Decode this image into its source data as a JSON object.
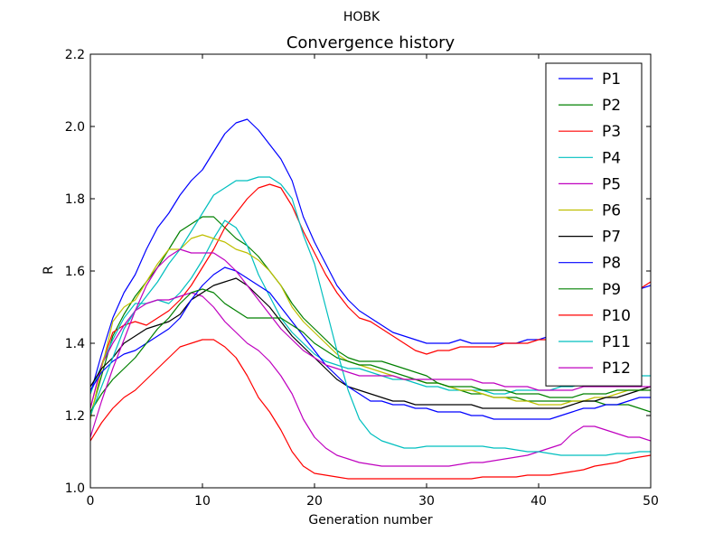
{
  "chart_data": {
    "type": "line",
    "suptitle": "HOBK",
    "title": "Convergence history",
    "xlabel": "Generation number",
    "ylabel": "R",
    "xlim": [
      0,
      50
    ],
    "ylim": [
      1.0,
      2.2
    ],
    "xticks": [
      0,
      10,
      20,
      30,
      40,
      50
    ],
    "yticks": [
      1.0,
      1.2,
      1.4,
      1.6,
      1.8,
      2.0,
      2.2
    ],
    "grid": false,
    "legend_position": "top-right",
    "x": [
      0,
      1,
      2,
      3,
      4,
      5,
      6,
      7,
      8,
      9,
      10,
      11,
      12,
      13,
      14,
      15,
      16,
      17,
      18,
      19,
      20,
      21,
      22,
      23,
      24,
      25,
      26,
      27,
      28,
      29,
      30,
      31,
      32,
      33,
      34,
      35,
      36,
      37,
      38,
      39,
      40,
      41,
      42,
      43,
      44,
      45,
      46,
      47,
      48,
      49,
      50
    ],
    "series": [
      {
        "name": "P1",
        "color": "#0000ff",
        "values": [
          1.26,
          1.37,
          1.47,
          1.54,
          1.59,
          1.66,
          1.72,
          1.76,
          1.81,
          1.85,
          1.88,
          1.93,
          1.98,
          2.01,
          2.02,
          1.99,
          1.95,
          1.91,
          1.85,
          1.75,
          1.68,
          1.62,
          1.56,
          1.52,
          1.49,
          1.47,
          1.45,
          1.43,
          1.42,
          1.41,
          1.4,
          1.4,
          1.4,
          1.41,
          1.4,
          1.4,
          1.4,
          1.4,
          1.4,
          1.41,
          1.41,
          1.42,
          1.43,
          1.45,
          1.47,
          1.49,
          1.51,
          1.52,
          1.54,
          1.55,
          1.56
        ]
      },
      {
        "name": "P2",
        "color": "#008000",
        "values": [
          1.2,
          1.31,
          1.42,
          1.48,
          1.53,
          1.57,
          1.61,
          1.66,
          1.71,
          1.73,
          1.75,
          1.75,
          1.72,
          1.69,
          1.67,
          1.64,
          1.6,
          1.56,
          1.51,
          1.47,
          1.44,
          1.41,
          1.38,
          1.36,
          1.35,
          1.35,
          1.35,
          1.34,
          1.33,
          1.32,
          1.31,
          1.29,
          1.28,
          1.27,
          1.26,
          1.26,
          1.25,
          1.25,
          1.25,
          1.24,
          1.24,
          1.24,
          1.24,
          1.24,
          1.24,
          1.24,
          1.23,
          1.23,
          1.23,
          1.22,
          1.21
        ]
      },
      {
        "name": "P3",
        "color": "#ff0000",
        "values": [
          1.22,
          1.34,
          1.43,
          1.45,
          1.46,
          1.45,
          1.47,
          1.49,
          1.52,
          1.56,
          1.61,
          1.66,
          1.72,
          1.76,
          1.8,
          1.83,
          1.84,
          1.83,
          1.78,
          1.71,
          1.65,
          1.59,
          1.54,
          1.5,
          1.47,
          1.46,
          1.44,
          1.42,
          1.4,
          1.38,
          1.37,
          1.38,
          1.38,
          1.39,
          1.39,
          1.39,
          1.39,
          1.4,
          1.4,
          1.4,
          1.41,
          1.41,
          1.42,
          1.43,
          1.45,
          1.47,
          1.49,
          1.51,
          1.53,
          1.55,
          1.57
        ]
      },
      {
        "name": "P4",
        "color": "#00bfbf",
        "values": [
          1.26,
          1.34,
          1.41,
          1.47,
          1.51,
          1.51,
          1.52,
          1.51,
          1.54,
          1.58,
          1.63,
          1.69,
          1.74,
          1.72,
          1.67,
          1.59,
          1.53,
          1.47,
          1.43,
          1.4,
          1.37,
          1.35,
          1.34,
          1.33,
          1.33,
          1.32,
          1.31,
          1.3,
          1.3,
          1.29,
          1.28,
          1.28,
          1.27,
          1.27,
          1.27,
          1.27,
          1.26,
          1.26,
          1.27,
          1.27,
          1.27,
          1.27,
          1.28,
          1.28,
          1.29,
          1.29,
          1.3,
          1.3,
          1.3,
          1.31,
          1.31
        ]
      },
      {
        "name": "P5",
        "color": "#bf00bf",
        "values": [
          1.22,
          1.34,
          1.4,
          1.45,
          1.49,
          1.51,
          1.52,
          1.52,
          1.53,
          1.54,
          1.53,
          1.5,
          1.46,
          1.43,
          1.4,
          1.38,
          1.35,
          1.31,
          1.26,
          1.19,
          1.14,
          1.11,
          1.09,
          1.08,
          1.07,
          1.065,
          1.06,
          1.06,
          1.06,
          1.06,
          1.06,
          1.06,
          1.06,
          1.065,
          1.07,
          1.07,
          1.075,
          1.08,
          1.085,
          1.09,
          1.1,
          1.11,
          1.12,
          1.15,
          1.17,
          1.17,
          1.16,
          1.15,
          1.14,
          1.14,
          1.13
        ]
      },
      {
        "name": "P6",
        "color": "#bfbf00",
        "values": [
          1.19,
          1.33,
          1.46,
          1.5,
          1.52,
          1.57,
          1.62,
          1.66,
          1.66,
          1.69,
          1.7,
          1.69,
          1.68,
          1.66,
          1.65,
          1.63,
          1.6,
          1.56,
          1.5,
          1.46,
          1.43,
          1.4,
          1.37,
          1.35,
          1.34,
          1.33,
          1.32,
          1.31,
          1.3,
          1.3,
          1.29,
          1.29,
          1.28,
          1.27,
          1.27,
          1.26,
          1.25,
          1.25,
          1.24,
          1.24,
          1.23,
          1.23,
          1.23,
          1.24,
          1.24,
          1.25,
          1.25,
          1.26,
          1.27,
          1.27,
          1.28
        ]
      },
      {
        "name": "P7",
        "color": "#000000",
        "values": [
          1.28,
          1.33,
          1.36,
          1.4,
          1.42,
          1.44,
          1.45,
          1.46,
          1.48,
          1.52,
          1.54,
          1.56,
          1.57,
          1.58,
          1.56,
          1.53,
          1.5,
          1.46,
          1.42,
          1.39,
          1.36,
          1.33,
          1.3,
          1.28,
          1.27,
          1.26,
          1.25,
          1.24,
          1.24,
          1.23,
          1.23,
          1.23,
          1.23,
          1.23,
          1.23,
          1.22,
          1.22,
          1.22,
          1.22,
          1.22,
          1.22,
          1.22,
          1.22,
          1.23,
          1.24,
          1.24,
          1.25,
          1.25,
          1.26,
          1.27,
          1.28
        ]
      },
      {
        "name": "P8",
        "color": "#0000ff",
        "values": [
          1.27,
          1.32,
          1.35,
          1.37,
          1.38,
          1.4,
          1.42,
          1.44,
          1.47,
          1.52,
          1.56,
          1.59,
          1.61,
          1.6,
          1.58,
          1.56,
          1.54,
          1.5,
          1.46,
          1.42,
          1.38,
          1.34,
          1.31,
          1.28,
          1.26,
          1.24,
          1.24,
          1.23,
          1.23,
          1.22,
          1.22,
          1.21,
          1.21,
          1.21,
          1.2,
          1.2,
          1.19,
          1.19,
          1.19,
          1.19,
          1.19,
          1.19,
          1.2,
          1.21,
          1.22,
          1.22,
          1.23,
          1.23,
          1.24,
          1.25,
          1.25
        ]
      },
      {
        "name": "P9",
        "color": "#008000",
        "values": [
          1.21,
          1.26,
          1.3,
          1.33,
          1.36,
          1.4,
          1.44,
          1.47,
          1.51,
          1.54,
          1.55,
          1.54,
          1.51,
          1.49,
          1.47,
          1.47,
          1.47,
          1.47,
          1.45,
          1.43,
          1.4,
          1.38,
          1.36,
          1.35,
          1.34,
          1.34,
          1.33,
          1.32,
          1.31,
          1.3,
          1.29,
          1.29,
          1.28,
          1.28,
          1.28,
          1.27,
          1.27,
          1.27,
          1.26,
          1.26,
          1.26,
          1.25,
          1.25,
          1.25,
          1.26,
          1.26,
          1.26,
          1.27,
          1.27,
          1.27,
          1.27
        ]
      },
      {
        "name": "P10",
        "color": "#ff0000",
        "values": [
          1.13,
          1.18,
          1.22,
          1.25,
          1.27,
          1.3,
          1.33,
          1.36,
          1.39,
          1.4,
          1.41,
          1.41,
          1.39,
          1.36,
          1.31,
          1.25,
          1.21,
          1.16,
          1.1,
          1.06,
          1.04,
          1.035,
          1.03,
          1.025,
          1.025,
          1.025,
          1.025,
          1.025,
          1.025,
          1.025,
          1.025,
          1.025,
          1.025,
          1.025,
          1.025,
          1.03,
          1.03,
          1.03,
          1.03,
          1.035,
          1.035,
          1.035,
          1.04,
          1.045,
          1.05,
          1.06,
          1.065,
          1.07,
          1.08,
          1.085,
          1.09
        ]
      },
      {
        "name": "P11",
        "color": "#00bfbf",
        "values": [
          1.2,
          1.28,
          1.36,
          1.44,
          1.49,
          1.53,
          1.57,
          1.62,
          1.66,
          1.71,
          1.76,
          1.81,
          1.83,
          1.85,
          1.85,
          1.86,
          1.86,
          1.84,
          1.8,
          1.7,
          1.62,
          1.5,
          1.38,
          1.27,
          1.19,
          1.15,
          1.13,
          1.12,
          1.11,
          1.11,
          1.115,
          1.115,
          1.115,
          1.115,
          1.115,
          1.115,
          1.11,
          1.11,
          1.105,
          1.1,
          1.1,
          1.095,
          1.09,
          1.09,
          1.09,
          1.09,
          1.09,
          1.095,
          1.095,
          1.1,
          1.1
        ]
      },
      {
        "name": "P12",
        "color": "#bf00bf",
        "values": [
          1.14,
          1.24,
          1.33,
          1.41,
          1.49,
          1.56,
          1.61,
          1.64,
          1.66,
          1.65,
          1.65,
          1.65,
          1.63,
          1.6,
          1.56,
          1.52,
          1.48,
          1.44,
          1.41,
          1.38,
          1.36,
          1.34,
          1.33,
          1.32,
          1.31,
          1.31,
          1.31,
          1.31,
          1.3,
          1.3,
          1.3,
          1.3,
          1.3,
          1.3,
          1.3,
          1.29,
          1.29,
          1.28,
          1.28,
          1.28,
          1.27,
          1.27,
          1.27,
          1.27,
          1.28,
          1.28,
          1.28,
          1.28,
          1.28,
          1.28,
          1.28
        ]
      }
    ]
  }
}
